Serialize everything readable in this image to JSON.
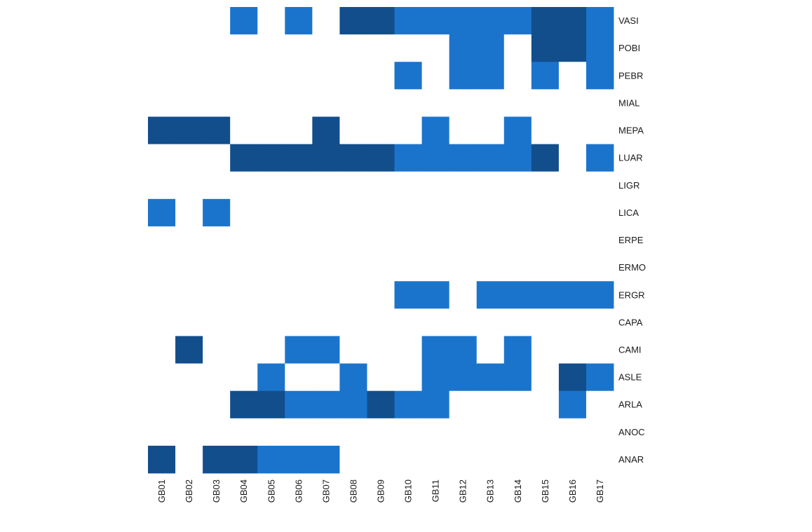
{
  "chart_data": {
    "type": "heatmap",
    "title": "",
    "xlabel": "",
    "ylabel": "",
    "legend": "none",
    "grid": false,
    "x": [
      "GB01",
      "GB02",
      "GB03",
      "GB04",
      "GB05",
      "GB06",
      "GB07",
      "GB08",
      "GB09",
      "GB10",
      "GB11",
      "GB12",
      "GB13",
      "GB14",
      "GB15",
      "GB16",
      "GB17"
    ],
    "y": [
      "VASI",
      "POBI",
      "PEBR",
      "MIAL",
      "MEPA",
      "LUAR",
      "LIGR",
      "LICA",
      "ERPE",
      "ERMO",
      "ERGR",
      "CAPA",
      "CAMI",
      "ASLE",
      "ARLA",
      "ANOC",
      "ANAR"
    ],
    "levels": {
      "0": "#ffffff",
      "1": "#1b74cc",
      "2": "#124e8c"
    },
    "values": [
      [
        0,
        0,
        0,
        1,
        0,
        1,
        0,
        2,
        2,
        1,
        1,
        1,
        1,
        1,
        2,
        2,
        1
      ],
      [
        0,
        0,
        0,
        0,
        0,
        0,
        0,
        0,
        0,
        0,
        0,
        1,
        1,
        0,
        2,
        2,
        1
      ],
      [
        0,
        0,
        0,
        0,
        0,
        0,
        0,
        0,
        0,
        1,
        0,
        1,
        1,
        0,
        1,
        0,
        1
      ],
      [
        0,
        0,
        0,
        0,
        0,
        0,
        0,
        0,
        0,
        0,
        0,
        0,
        0,
        0,
        0,
        0,
        0
      ],
      [
        2,
        2,
        2,
        0,
        0,
        0,
        2,
        0,
        0,
        0,
        1,
        0,
        0,
        1,
        0,
        0,
        0
      ],
      [
        0,
        0,
        0,
        2,
        2,
        2,
        2,
        2,
        2,
        1,
        1,
        1,
        1,
        1,
        2,
        0,
        1
      ],
      [
        0,
        0,
        0,
        0,
        0,
        0,
        0,
        0,
        0,
        0,
        0,
        0,
        0,
        0,
        0,
        0,
        0
      ],
      [
        1,
        0,
        1,
        0,
        0,
        0,
        0,
        0,
        0,
        0,
        0,
        0,
        0,
        0,
        0,
        0,
        0
      ],
      [
        0,
        0,
        0,
        0,
        0,
        0,
        0,
        0,
        0,
        0,
        0,
        0,
        0,
        0,
        0,
        0,
        0
      ],
      [
        0,
        0,
        0,
        0,
        0,
        0,
        0,
        0,
        0,
        0,
        0,
        0,
        0,
        0,
        0,
        0,
        0
      ],
      [
        0,
        0,
        0,
        0,
        0,
        0,
        0,
        0,
        0,
        1,
        1,
        0,
        1,
        1,
        1,
        1,
        1
      ],
      [
        0,
        0,
        0,
        0,
        0,
        0,
        0,
        0,
        0,
        0,
        0,
        0,
        0,
        0,
        0,
        0,
        0
      ],
      [
        0,
        2,
        0,
        0,
        0,
        1,
        1,
        0,
        0,
        0,
        1,
        1,
        0,
        1,
        0,
        0,
        0
      ],
      [
        0,
        0,
        0,
        0,
        1,
        0,
        0,
        1,
        0,
        0,
        1,
        1,
        1,
        1,
        0,
        2,
        1
      ],
      [
        0,
        0,
        0,
        2,
        2,
        1,
        1,
        1,
        2,
        1,
        1,
        0,
        0,
        0,
        0,
        1,
        0
      ],
      [
        0,
        0,
        0,
        0,
        0,
        0,
        0,
        0,
        0,
        0,
        0,
        0,
        0,
        0,
        0,
        0,
        0
      ],
      [
        2,
        0,
        2,
        2,
        1,
        1,
        1,
        0,
        0,
        0,
        0,
        0,
        0,
        0,
        0,
        0,
        0
      ]
    ]
  }
}
